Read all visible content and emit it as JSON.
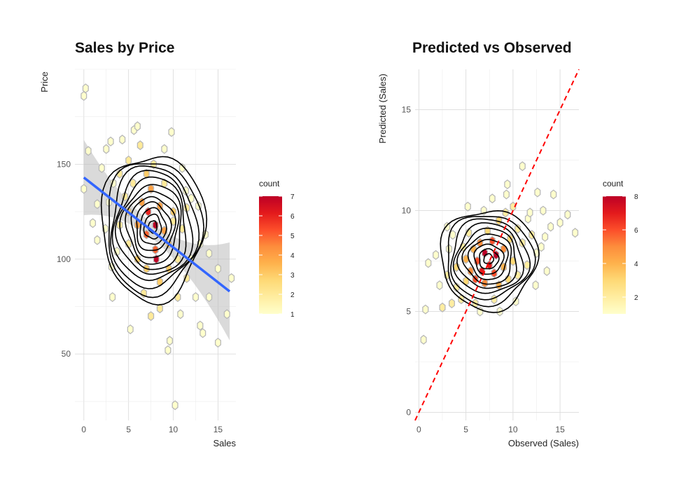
{
  "chart_data": [
    {
      "type": "hexbin",
      "title": "Sales by Price",
      "xlabel": "Sales",
      "ylabel": "Price",
      "xlim": [
        -1,
        17
      ],
      "ylim": [
        15,
        200
      ],
      "x_ticks": [
        0,
        5,
        10,
        15
      ],
      "y_ticks": [
        50,
        100,
        150
      ],
      "grid": true,
      "legend": {
        "title": "count",
        "position": "right",
        "ticks": [
          1,
          2,
          3,
          4,
          5,
          6,
          7
        ],
        "min": 1,
        "max": 7
      },
      "overlays": [
        "density-contours",
        "linear-fit-with-ci"
      ],
      "fit_line": {
        "x": [
          0,
          16.3
        ],
        "y": [
          143,
          83
        ],
        "color": "#3366ff"
      },
      "density": {
        "center": [
          7.7,
          117
        ],
        "spread": [
          3.6,
          24
        ],
        "levels": 12
      },
      "points": [
        [
          0,
          186,
          1
        ],
        [
          0.2,
          190,
          1
        ],
        [
          0.5,
          157,
          1
        ],
        [
          0,
          137,
          1
        ],
        [
          1,
          119,
          1
        ],
        [
          1.5,
          110,
          1
        ],
        [
          2,
          148,
          1
        ],
        [
          2.5,
          158,
          1
        ],
        [
          2.8,
          130,
          1
        ],
        [
          3,
          162,
          1
        ],
        [
          3.3,
          140,
          1
        ],
        [
          3.1,
          96,
          1
        ],
        [
          3.2,
          80,
          1
        ],
        [
          3.7,
          104,
          1
        ],
        [
          4,
          118,
          2
        ],
        [
          4,
          145,
          2
        ],
        [
          4.3,
          163,
          1
        ],
        [
          4.6,
          133,
          2
        ],
        [
          5,
          152,
          2
        ],
        [
          5,
          125,
          3
        ],
        [
          5,
          108,
          2
        ],
        [
          5.5,
          140,
          2
        ],
        [
          5.6,
          168,
          1
        ],
        [
          6,
          170,
          1
        ],
        [
          6,
          118,
          4
        ],
        [
          6,
          100,
          3
        ],
        [
          6.3,
          160,
          2
        ],
        [
          6.5,
          130,
          4
        ],
        [
          7,
          113,
          5
        ],
        [
          7,
          145,
          3
        ],
        [
          7,
          95,
          3
        ],
        [
          7.2,
          125,
          6
        ],
        [
          7.5,
          137,
          4
        ],
        [
          7.8,
          150,
          2
        ],
        [
          8,
          118,
          7
        ],
        [
          8,
          105,
          5
        ],
        [
          8.1,
          100,
          7
        ],
        [
          8.5,
          128,
          4
        ],
        [
          8.5,
          88,
          3
        ],
        [
          9,
          115,
          4
        ],
        [
          9,
          140,
          2
        ],
        [
          9,
          158,
          1
        ],
        [
          9.5,
          108,
          3
        ],
        [
          9.5,
          95,
          3
        ],
        [
          9.8,
          167,
          1
        ],
        [
          10,
          125,
          3
        ],
        [
          10,
          120,
          2
        ],
        [
          10.5,
          100,
          2
        ],
        [
          10.5,
          80,
          2
        ],
        [
          11,
          148,
          1
        ],
        [
          11,
          116,
          2
        ],
        [
          11.5,
          127,
          2
        ],
        [
          11.5,
          90,
          2
        ],
        [
          12,
          132,
          1
        ],
        [
          12,
          100,
          1
        ],
        [
          12.5,
          80,
          1
        ],
        [
          13,
          108,
          1
        ],
        [
          13,
          65,
          1
        ],
        [
          14,
          103,
          1
        ],
        [
          14,
          80,
          1
        ],
        [
          15,
          56,
          1
        ],
        [
          15,
          95,
          1
        ],
        [
          16,
          71,
          1
        ],
        [
          16.5,
          90,
          1
        ],
        [
          9.6,
          57,
          1
        ],
        [
          9.4,
          52,
          1
        ],
        [
          10.2,
          23,
          1
        ],
        [
          13.3,
          61,
          1
        ],
        [
          5.2,
          63,
          1
        ],
        [
          7.5,
          70,
          2
        ],
        [
          8.5,
          74,
          2
        ],
        [
          10.8,
          71,
          1
        ],
        [
          12.8,
          128,
          1
        ],
        [
          13.6,
          113,
          1
        ],
        [
          2.4,
          116,
          1
        ],
        [
          1.5,
          129,
          1
        ],
        [
          6.7,
          82,
          2
        ],
        [
          11.4,
          136,
          1
        ]
      ]
    },
    {
      "type": "hexbin",
      "title": "Predicted vs Observed",
      "xlabel": "Observed (Sales)",
      "ylabel": "Predicted (Sales)",
      "xlim": [
        -0.4,
        17
      ],
      "ylim": [
        -0.4,
        17
      ],
      "x_ticks": [
        0,
        5,
        10,
        15
      ],
      "y_ticks": [
        0,
        5,
        10,
        15
      ],
      "grid": true,
      "legend": {
        "title": "count",
        "position": "right",
        "ticks": [
          2,
          4,
          6,
          8
        ],
        "min": 1,
        "max": 8
      },
      "overlays": [
        "density-contours",
        "identity-line"
      ],
      "identity_line": {
        "x": [
          -0.4,
          17
        ],
        "y": [
          -0.4,
          17
        ],
        "color": "#ff0000",
        "dash": true
      },
      "density": {
        "center": [
          7.4,
          7.6
        ],
        "spread": [
          3.2,
          1.55
        ],
        "levels": 10
      },
      "points": [
        [
          0.5,
          3.6,
          1
        ],
        [
          0.7,
          5.1,
          1
        ],
        [
          1,
          7.4,
          1
        ],
        [
          1.8,
          7.8,
          1
        ],
        [
          2.2,
          6.3,
          1
        ],
        [
          2.5,
          5.2,
          2
        ],
        [
          3,
          6.8,
          2
        ],
        [
          3.2,
          8.1,
          1
        ],
        [
          3.5,
          5.4,
          2
        ],
        [
          3.6,
          8.8,
          1
        ],
        [
          4,
          7.2,
          3
        ],
        [
          4,
          6.2,
          2
        ],
        [
          4.5,
          5.6,
          2
        ],
        [
          4.7,
          8.2,
          2
        ],
        [
          5,
          7.6,
          4
        ],
        [
          5,
          6.5,
          3
        ],
        [
          5.3,
          8.9,
          2
        ],
        [
          5.5,
          7.0,
          5
        ],
        [
          5.8,
          8.1,
          4
        ],
        [
          6,
          6.6,
          6
        ],
        [
          6,
          5.4,
          2
        ],
        [
          6.2,
          7.5,
          6
        ],
        [
          6.5,
          8.4,
          5
        ],
        [
          6.7,
          7.0,
          7
        ],
        [
          7,
          6.4,
          5
        ],
        [
          7,
          7.9,
          8
        ],
        [
          7.3,
          9.0,
          3
        ],
        [
          7.5,
          7.3,
          7
        ],
        [
          7.8,
          8.5,
          6
        ],
        [
          8,
          6.9,
          6
        ],
        [
          8.2,
          7.8,
          8
        ],
        [
          8.5,
          9.5,
          3
        ],
        [
          8.5,
          6.3,
          4
        ],
        [
          9,
          8.1,
          5
        ],
        [
          9,
          7.2,
          4
        ],
        [
          9.2,
          9.9,
          2
        ],
        [
          9.5,
          6.6,
          3
        ],
        [
          9.7,
          8.6,
          3
        ],
        [
          10,
          7.5,
          3
        ],
        [
          10,
          10.2,
          2
        ],
        [
          10.5,
          9.1,
          2
        ],
        [
          10.5,
          6.8,
          2
        ],
        [
          11,
          12.2,
          1
        ],
        [
          11,
          8.4,
          2
        ],
        [
          11.5,
          7.3,
          2
        ],
        [
          11.6,
          9.6,
          1
        ],
        [
          12,
          8.8,
          2
        ],
        [
          12.5,
          7.9,
          1
        ],
        [
          12.6,
          10.9,
          1
        ],
        [
          13,
          8.2,
          1
        ],
        [
          13.2,
          10.0,
          1
        ],
        [
          13.6,
          7.0,
          1
        ],
        [
          14,
          9.2,
          1
        ],
        [
          14.3,
          10.8,
          1
        ],
        [
          15,
          9.4,
          1
        ],
        [
          15.8,
          9.8,
          1
        ],
        [
          16.6,
          8.9,
          1
        ],
        [
          9.4,
          11.3,
          1
        ],
        [
          9.3,
          10.8,
          1
        ],
        [
          10.3,
          5.5,
          1
        ],
        [
          8,
          5.6,
          2
        ],
        [
          6.5,
          5.0,
          1
        ],
        [
          7.8,
          10.6,
          1
        ],
        [
          12.4,
          6.3,
          1
        ],
        [
          3.0,
          9.2,
          1
        ],
        [
          5.2,
          10.2,
          1
        ],
        [
          11.8,
          9.9,
          1
        ],
        [
          13.4,
          8.7,
          1
        ],
        [
          8.6,
          5.0,
          1
        ],
        [
          6.9,
          10.0,
          1
        ]
      ]
    }
  ]
}
